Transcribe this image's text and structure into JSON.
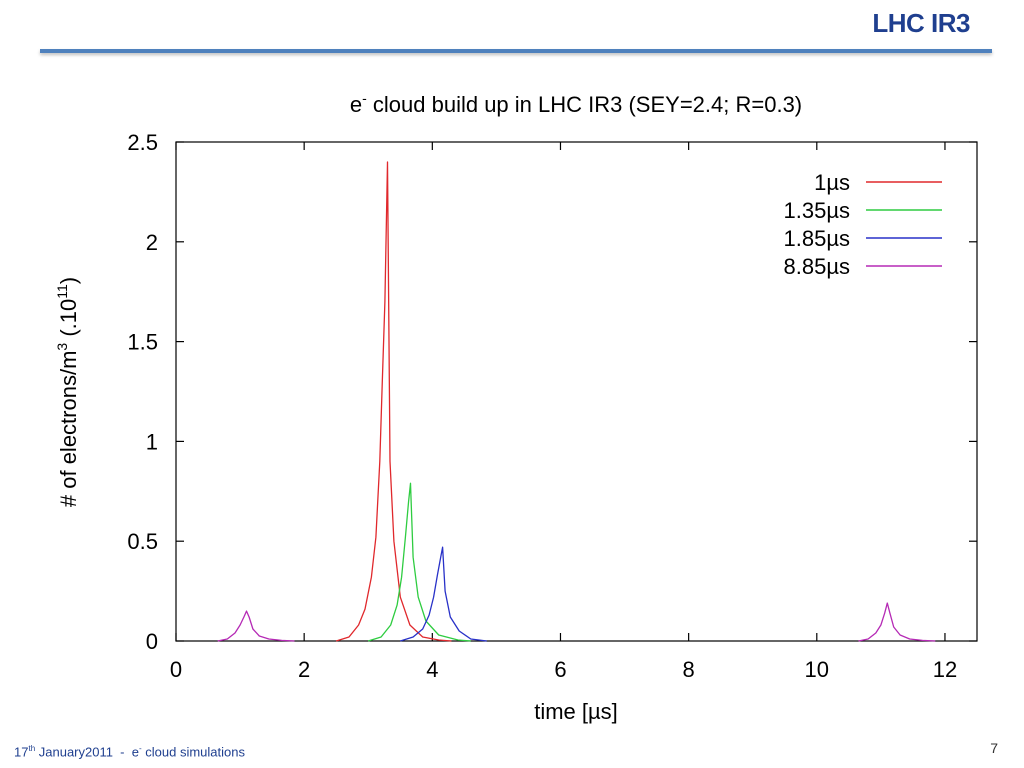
{
  "slide": {
    "title": "LHC IR3",
    "footer": {
      "prefix": "17",
      "sup": "th",
      "middle": " January2011  -  e",
      "sup2": "-",
      "suffix": " cloud simulations"
    },
    "page_number": "7"
  },
  "colors": {
    "title": "#1f3f8f",
    "rule": "#4f81bd"
  },
  "chart_data": {
    "type": "line",
    "title_prefix": "e",
    "title_sup": "-",
    "title_rest": " cloud build up in LHC IR3 (SEY=2.4; R=0.3)",
    "xlabel": "time [µs]",
    "ylabel_parts": [
      "# of electrons/m",
      "3",
      " (.10",
      "11",
      ")"
    ],
    "xlim": [
      0,
      12.5
    ],
    "ylim": [
      0,
      2.5
    ],
    "xticks": [
      0,
      2,
      4,
      6,
      8,
      10,
      12
    ],
    "yticks": [
      0,
      0.5,
      1,
      1.5,
      2,
      2.5
    ],
    "xtick_labels": [
      "0",
      "2",
      "4",
      "6",
      "8",
      "10",
      "12"
    ],
    "ytick_labels": [
      "0",
      "0.5",
      "1",
      "1.5",
      "2",
      "2.5"
    ],
    "legend_position": "top-right",
    "grid": false,
    "series": [
      {
        "name": "1µs",
        "color": "#e0282c",
        "x": [
          2.5,
          2.7,
          2.85,
          2.95,
          3.05,
          3.12,
          3.18,
          3.22,
          3.26,
          3.3,
          3.34,
          3.4,
          3.5,
          3.65,
          3.85,
          4.1,
          4.3
        ],
        "y": [
          0,
          0.02,
          0.08,
          0.16,
          0.32,
          0.52,
          0.9,
          1.3,
          1.7,
          2.4,
          0.9,
          0.5,
          0.22,
          0.08,
          0.02,
          0.005,
          0
        ]
      },
      {
        "name": "1.35µs",
        "color": "#2ecc40",
        "x": [
          3.0,
          3.2,
          3.35,
          3.45,
          3.52,
          3.58,
          3.63,
          3.66,
          3.7,
          3.78,
          3.9,
          4.1,
          4.4,
          4.6
        ],
        "y": [
          0,
          0.02,
          0.08,
          0.18,
          0.32,
          0.52,
          0.7,
          0.79,
          0.42,
          0.22,
          0.1,
          0.03,
          0.005,
          0
        ]
      },
      {
        "name": "1.85µs",
        "color": "#2831c8",
        "x": [
          3.5,
          3.7,
          3.85,
          3.95,
          4.02,
          4.08,
          4.13,
          4.16,
          4.2,
          4.28,
          4.42,
          4.6,
          4.85
        ],
        "y": [
          0,
          0.02,
          0.06,
          0.13,
          0.22,
          0.33,
          0.42,
          0.47,
          0.25,
          0.12,
          0.05,
          0.01,
          0
        ]
      },
      {
        "name": "8.85µs",
        "color": "#b52ab5",
        "x": [
          0.65,
          0.8,
          0.92,
          1.0,
          1.06,
          1.1,
          1.14,
          1.2,
          1.3,
          1.45,
          1.65,
          1.85,
          10.65,
          10.8,
          10.92,
          11.0,
          11.06,
          11.1,
          11.14,
          11.2,
          11.3,
          11.45,
          11.65,
          11.85
        ],
        "y": [
          0,
          0.01,
          0.04,
          0.08,
          0.12,
          0.15,
          0.12,
          0.06,
          0.025,
          0.01,
          0.003,
          0,
          0,
          0.01,
          0.04,
          0.08,
          0.14,
          0.19,
          0.14,
          0.07,
          0.03,
          0.01,
          0.003,
          0
        ]
      }
    ]
  }
}
